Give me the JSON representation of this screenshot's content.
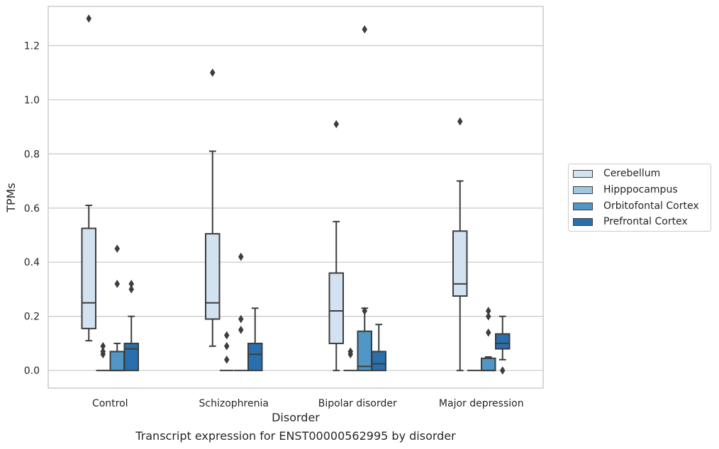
{
  "chart_data": {
    "type": "box",
    "xlabel": "Disorder",
    "ylabel": "TPMs",
    "caption": "Transcript expression for ENST00000562995 by disorder",
    "ylim": [
      -0.065,
      1.345
    ],
    "yticks": [
      0.0,
      0.2,
      0.4,
      0.6,
      0.8,
      1.0,
      1.2
    ],
    "ytick_labels": [
      "0.0",
      "0.2",
      "0.4",
      "0.6",
      "0.8",
      "1.0",
      "1.2"
    ],
    "grid": "horizontal",
    "legend_position": "right",
    "categories": [
      "Control",
      "Schizophrenia",
      "Bipolar disorder",
      "Major depression"
    ],
    "series": [
      {
        "name": "Cerebellum",
        "color": "#d3e2f1",
        "boxes": [
          {
            "whislo": 0.11,
            "q1": 0.155,
            "med": 0.25,
            "q3": 0.525,
            "whishi": 0.61,
            "fliers": [
              1.3
            ]
          },
          {
            "whislo": 0.09,
            "q1": 0.19,
            "med": 0.25,
            "q3": 0.505,
            "whishi": 0.81,
            "fliers": [
              1.1
            ]
          },
          {
            "whislo": 0.0,
            "q1": 0.1,
            "med": 0.22,
            "q3": 0.36,
            "whishi": 0.55,
            "fliers": [
              0.91
            ]
          },
          {
            "whislo": 0.0,
            "q1": 0.275,
            "med": 0.32,
            "q3": 0.515,
            "whishi": 0.7,
            "fliers": [
              0.92
            ]
          }
        ]
      },
      {
        "name": "Hipppocampus",
        "color": "#9fc7e0",
        "boxes": [
          {
            "whislo": 0.0,
            "q1": 0.0,
            "med": 0.0,
            "q3": 0.0,
            "whishi": 0.0,
            "fliers": [
              0.09,
              0.07,
              0.06
            ]
          },
          {
            "whislo": 0.0,
            "q1": 0.0,
            "med": 0.0,
            "q3": 0.0,
            "whishi": 0.0,
            "fliers": [
              0.13,
              0.09,
              0.04
            ]
          },
          {
            "whislo": 0.0,
            "q1": 0.0,
            "med": 0.0,
            "q3": 0.0,
            "whishi": 0.0,
            "fliers": [
              0.07,
              0.06
            ]
          },
          {
            "whislo": 0.0,
            "q1": 0.0,
            "med": 0.0,
            "q3": 0.0,
            "whishi": 0.0,
            "fliers": []
          }
        ]
      },
      {
        "name": "Orbitofontal Cortex",
        "color": "#5096c6",
        "boxes": [
          {
            "whislo": 0.0,
            "q1": 0.0,
            "med": 0.0,
            "q3": 0.07,
            "whishi": 0.1,
            "fliers": [
              0.45,
              0.32
            ]
          },
          {
            "whislo": 0.0,
            "q1": 0.0,
            "med": 0.0,
            "q3": 0.0,
            "whishi": 0.0,
            "fliers": [
              0.42,
              0.19,
              0.15
            ]
          },
          {
            "whislo": 0.0,
            "q1": 0.0,
            "med": 0.015,
            "q3": 0.145,
            "whishi": 0.23,
            "fliers": [
              1.26,
              0.22
            ]
          },
          {
            "whislo": 0.0,
            "q1": 0.0,
            "med": 0.0,
            "q3": 0.045,
            "whishi": 0.05,
            "fliers": [
              0.22,
              0.2,
              0.14
            ]
          }
        ]
      },
      {
        "name": "Prefrontal Cortex",
        "color": "#2a6fad",
        "boxes": [
          {
            "whislo": 0.0,
            "q1": 0.0,
            "med": 0.08,
            "q3": 0.1,
            "whishi": 0.2,
            "fliers": [
              0.32,
              0.3
            ]
          },
          {
            "whislo": 0.0,
            "q1": 0.0,
            "med": 0.06,
            "q3": 0.1,
            "whishi": 0.23,
            "fliers": []
          },
          {
            "whislo": 0.0,
            "q1": 0.0,
            "med": 0.025,
            "q3": 0.07,
            "whishi": 0.17,
            "fliers": []
          },
          {
            "whislo": 0.04,
            "q1": 0.08,
            "med": 0.1,
            "q3": 0.135,
            "whishi": 0.2,
            "fliers": [
              0.0
            ]
          }
        ]
      }
    ]
  }
}
